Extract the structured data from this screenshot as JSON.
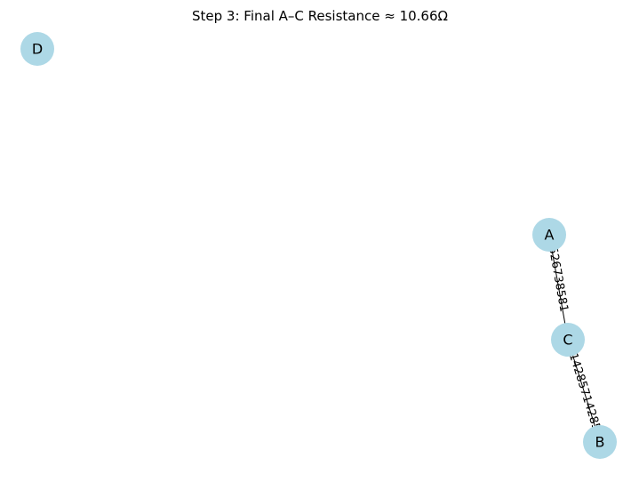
{
  "title": "Step 3: Final A–C Resistance ≈ 10.66Ω",
  "colors": {
    "node_fill": "#add8e6",
    "edge": "#000000",
    "text": "#000000",
    "background": "#ffffff"
  },
  "nodes": [
    {
      "id": "D",
      "label": "D"
    },
    {
      "id": "A",
      "label": "A"
    },
    {
      "id": "C",
      "label": "C"
    },
    {
      "id": "B",
      "label": "B"
    }
  ],
  "edges": [
    {
      "source": "A",
      "target": "C",
      "label": "10.526738581"
    },
    {
      "source": "C",
      "target": "B",
      "label": "0.142857142857"
    }
  ]
}
